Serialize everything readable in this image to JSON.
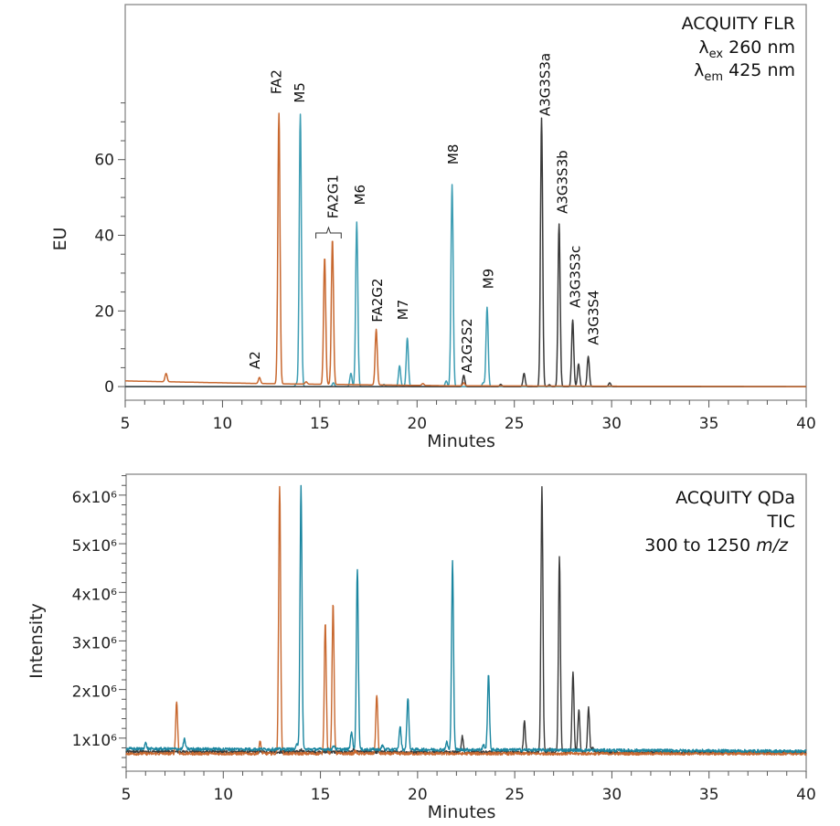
{
  "chart_data": [
    {
      "type": "line",
      "xlabel": "Minutes",
      "ylabel": "EU",
      "xlim": [
        5,
        40
      ],
      "ylim": [
        -3.6,
        101
      ],
      "xticks": [
        5,
        10,
        15,
        20,
        25,
        30,
        35,
        40
      ],
      "yticks": [
        0,
        20,
        40,
        60
      ],
      "info": {
        "line1": "ACQUITY FLR",
        "ex": {
          "sym": "λ",
          "sub": "ex",
          "text": " 260 nm"
        },
        "em": {
          "sym": "λ",
          "sub": "em",
          "text": " 425 nm"
        }
      },
      "grid": false,
      "series": [
        {
          "color": "#3d9db3",
          "baseline": [
            [
              5,
              0
            ],
            [
              40,
              0
            ]
          ],
          "peaks": [
            [
              13.8,
              0.8
            ],
            [
              14.0,
              72
            ],
            [
              15.7,
              1
            ],
            [
              16.6,
              3.5
            ],
            [
              16.9,
              43.5
            ],
            [
              18.3,
              0.6
            ],
            [
              19.1,
              5.5
            ],
            [
              19.5,
              12.8
            ],
            [
              21.5,
              1.5
            ],
            [
              21.8,
              53.4
            ],
            [
              23.4,
              1
            ],
            [
              23.6,
              21
            ]
          ]
        },
        {
          "color": "#3a3a3a",
          "baseline": [
            [
              5,
              0
            ],
            [
              40,
              0
            ]
          ],
          "peaks": [
            [
              22.4,
              3
            ],
            [
              24.3,
              0.6
            ],
            [
              25.5,
              3.5
            ],
            [
              26.4,
              71
            ],
            [
              26.8,
              0.5
            ],
            [
              27.3,
              43
            ],
            [
              28.0,
              17.6
            ],
            [
              28.3,
              6
            ],
            [
              28.8,
              8
            ],
            [
              29.9,
              1
            ]
          ]
        },
        {
          "color": "#c8682f",
          "baseline": [
            [
              5,
              1.5
            ],
            [
              12,
              0.8
            ],
            [
              22,
              0.2
            ],
            [
              40,
              0
            ]
          ],
          "peaks": [
            [
              7.1,
              2.2
            ],
            [
              11.9,
              1.6
            ],
            [
              12.9,
              71.5
            ],
            [
              14.3,
              0.6
            ],
            [
              15.25,
              33.6
            ],
            [
              15.65,
              38.4
            ],
            [
              17.9,
              14.7
            ],
            [
              20.3,
              0.5
            ],
            [
              22.4,
              0.8
            ]
          ]
        }
      ],
      "annotations": [
        {
          "text": "A2",
          "x": 11.7,
          "y": 4.6
        },
        {
          "text": "FA2",
          "x": 12.8,
          "y": 77.3
        },
        {
          "text": "M5",
          "x": 14.0,
          "y": 75
        },
        {
          "text": "FA2G1",
          "x": 15.7,
          "y": 44.4,
          "bracket": [
            14.8,
            16.1,
            40.6
          ]
        },
        {
          "text": "M6",
          "x": 17.1,
          "y": 48
        },
        {
          "text": "FA2G2",
          "x": 18.0,
          "y": 17
        },
        {
          "text": "M7",
          "x": 19.3,
          "y": 17.6
        },
        {
          "text": "M8",
          "x": 21.9,
          "y": 58.7
        },
        {
          "text": "A2G2S2",
          "x": 22.6,
          "y": 3.6
        },
        {
          "text": "M9",
          "x": 23.7,
          "y": 25.8
        },
        {
          "text": "A3G3S3a",
          "x": 26.6,
          "y": 71.5
        },
        {
          "text": "A3G3S3b",
          "x": 27.5,
          "y": 45.7
        },
        {
          "text": "A3G3S3c",
          "x": 28.15,
          "y": 20.8
        },
        {
          "text": "A3G3S4",
          "x": 29.1,
          "y": 11
        }
      ]
    },
    {
      "type": "line",
      "xlabel": "Minutes",
      "ylabel": "Intensity",
      "xlim": [
        5,
        40
      ],
      "ylim": [
        320000,
        6430000
      ],
      "xticks": [
        5,
        10,
        15,
        20,
        25,
        30,
        35,
        40
      ],
      "yticks": [
        1000000,
        2000000,
        3000000,
        4000000,
        5000000,
        6000000
      ],
      "ytick_labels": [
        "1x10⁶",
        "2x10⁶",
        "3x10⁶",
        "4x10⁶",
        "5x10⁶",
        "6x10⁶"
      ],
      "info": {
        "line1": "ACQUITY QDa",
        "line2": "TIC",
        "line3": "300 to 1250 ",
        "line3_italic": "m/z"
      },
      "grid": false,
      "series": [
        {
          "color": "#3a3a3a",
          "baseline": [
            [
              5,
              720000
            ],
            [
              40,
              700000
            ]
          ],
          "peaks": [
            [
              14.0,
              50000
            ],
            [
              16.7,
              50000
            ],
            [
              22.3,
              330000
            ],
            [
              24.4,
              50000
            ],
            [
              25.5,
              630000
            ],
            [
              26.4,
              5480000
            ],
            [
              26.8,
              80000
            ],
            [
              27.3,
              4030000
            ],
            [
              28.0,
              1680000
            ],
            [
              28.3,
              880000
            ],
            [
              28.8,
              930000
            ],
            [
              29.0,
              100000
            ]
          ]
        },
        {
          "color": "#c8682f",
          "baseline": [
            [
              5,
              680000
            ],
            [
              40,
              680000
            ]
          ],
          "peaks": [
            [
              7.6,
              1070000
            ],
            [
              11.9,
              250000
            ],
            [
              12.9,
              5520000
            ],
            [
              15.25,
              2720000
            ],
            [
              15.65,
              3120000
            ],
            [
              16.8,
              50000
            ],
            [
              17.9,
              1220000
            ]
          ]
        },
        {
          "color": "#1b86a0",
          "baseline": [
            [
              5,
              780000
            ],
            [
              25,
              760000
            ],
            [
              40,
              730000
            ]
          ],
          "peaks": [
            [
              6.0,
              120000
            ],
            [
              8.0,
              200000
            ],
            [
              13.8,
              100000
            ],
            [
              14.0,
              5420000
            ],
            [
              15.7,
              80000
            ],
            [
              16.6,
              370000
            ],
            [
              16.9,
              3720000
            ],
            [
              18.2,
              80000
            ],
            [
              19.1,
              470000
            ],
            [
              19.5,
              1070000
            ],
            [
              21.5,
              150000
            ],
            [
              21.8,
              3870000
            ],
            [
              23.4,
              100000
            ],
            [
              23.65,
              1540000
            ]
          ]
        }
      ]
    }
  ]
}
